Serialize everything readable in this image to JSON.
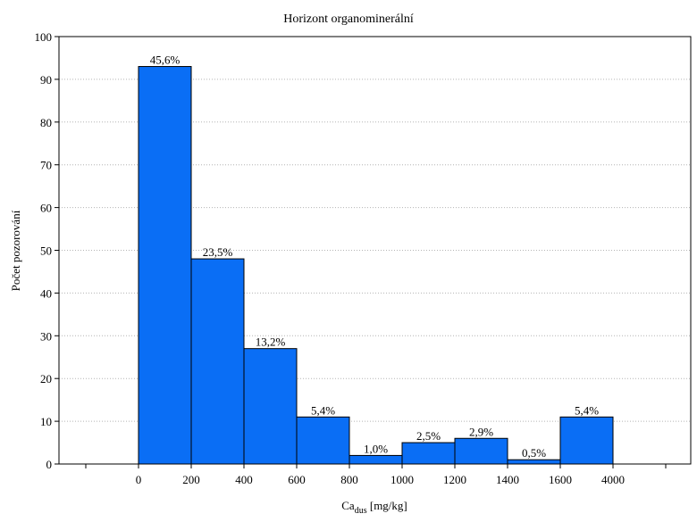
{
  "chart_data": {
    "type": "bar",
    "title": "Horizont organominerální",
    "xlabel": {
      "main": "Ca",
      "sub": "dus",
      "rest": " [mg/kg]"
    },
    "ylabel": "Počet pozorování",
    "ylim": [
      0,
      100
    ],
    "yticks": [
      0,
      10,
      20,
      30,
      40,
      50,
      60,
      70,
      80,
      90,
      100
    ],
    "bin_edges": [
      "0",
      "200",
      "400",
      "600",
      "800",
      "1000",
      "1200",
      "1400",
      "1600",
      "4000"
    ],
    "values": [
      93,
      48,
      27,
      11,
      2,
      5,
      6,
      1,
      11
    ],
    "data_labels": [
      "45,6%",
      "23,5%",
      "13,2%",
      "5,4%",
      "1,0%",
      "2,5%",
      "2,9%",
      "0,5%",
      "5,4%"
    ],
    "bar_color": "#0a6ef5",
    "grid": "horizontal-dotted"
  }
}
